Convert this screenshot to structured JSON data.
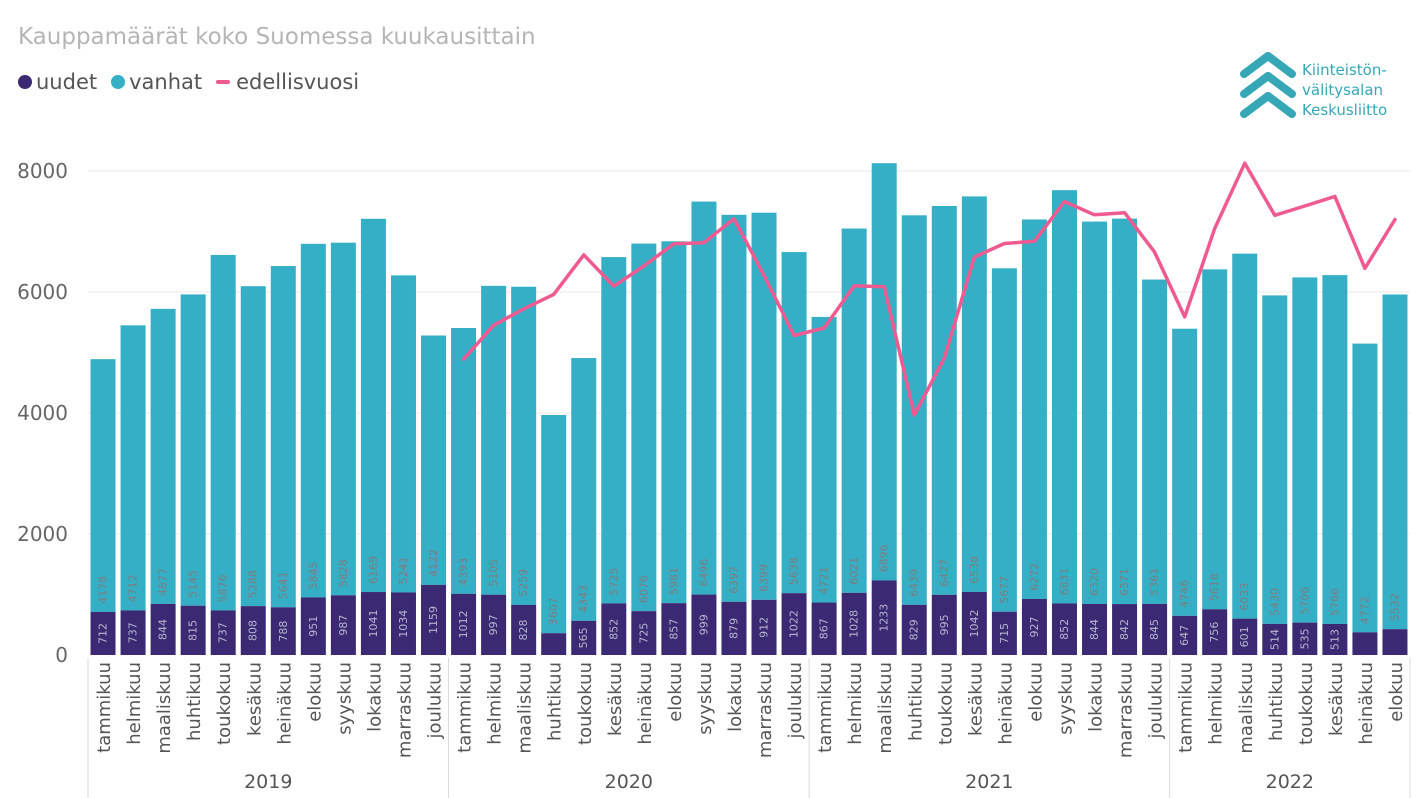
{
  "title": "Kauppamäärät koko Suomessa kuukausittain",
  "legend": {
    "uudet": "uudet",
    "vanhat": "vanhat",
    "edellisvuosi": "edellisvuosi"
  },
  "logo": {
    "line1": "Kiinteistön-",
    "line2": "välitysalan",
    "line3": "Keskusliitto"
  },
  "colors": {
    "uudet": "#3b2a73",
    "vanhat": "#35afc6",
    "edellisvuosi": "#ef5b91",
    "logo": "#35a7b7"
  },
  "chart_data": {
    "type": "bar",
    "stacked": true,
    "title": "Kauppamäärät koko Suomessa kuukausittain",
    "ylim": [
      0,
      8000
    ],
    "yticks": [
      0,
      2000,
      4000,
      6000,
      8000
    ],
    "grid": true,
    "legend_position": "top-left",
    "years": [
      "2019",
      "2020",
      "2021",
      "2022"
    ],
    "year_lengths": [
      12,
      12,
      12,
      8
    ],
    "categories": [
      "tammikuu",
      "helmikuu",
      "maaliskuu",
      "huhtikuu",
      "toukokuu",
      "kesäkuu",
      "heinäkuu",
      "elokuu",
      "syyskuu",
      "lokakuu",
      "marraskuu",
      "joulukuu",
      "tammikuu",
      "helmikuu",
      "maaliskuu",
      "huhtikuu",
      "toukokuu",
      "kesäkuu",
      "heinäkuu",
      "elokuu",
      "syyskuu",
      "lokakuu",
      "marraskuu",
      "joulukuu",
      "tammikuu",
      "helmikuu",
      "maaliskuu",
      "huhtikuu",
      "toukokuu",
      "kesäkuu",
      "heinäkuu",
      "elokuu",
      "syyskuu",
      "lokakuu",
      "marraskuu",
      "joulukuu",
      "tammikuu",
      "helmikuu",
      "maaliskuu",
      "huhtikuu",
      "toukokuu",
      "kesäkuu",
      "heinäkuu",
      "elokuu"
    ],
    "series": [
      {
        "name": "uudet",
        "values": [
          712,
          737,
          844,
          815,
          737,
          808,
          788,
          951,
          987,
          1041,
          1034,
          1159,
          1012,
          997,
          828,
          360,
          565,
          852,
          725,
          857,
          999,
          879,
          912,
          1022,
          867,
          1028,
          1233,
          829,
          995,
          1042,
          715,
          927,
          852,
          844,
          842,
          845,
          647,
          756,
          601,
          514,
          535,
          513,
          375,
          427
        ],
        "labels": [
          "712",
          "737",
          "844",
          "815",
          "737",
          "808",
          "788",
          "951",
          "987",
          "1041",
          "1034",
          "1159",
          "1012",
          "997",
          "828",
          "",
          "565",
          "852",
          "725",
          "857",
          "999",
          "879",
          "912",
          "1022",
          "867",
          "1028",
          "1233",
          "829",
          "995",
          "1042",
          "715",
          "927",
          "852",
          "844",
          "842",
          "845",
          "647",
          "756",
          "601",
          "514",
          "535",
          "513",
          "",
          ""
        ]
      },
      {
        "name": "vanhat",
        "values": [
          4178,
          4712,
          4877,
          5145,
          5876,
          5288,
          5641,
          5845,
          5828,
          6169,
          5241,
          4122,
          4393,
          5105,
          5259,
          3607,
          4343,
          5725,
          6076,
          5981,
          6496,
          6397,
          6399,
          5638,
          4721,
          6021,
          6896,
          6439,
          6427,
          6538,
          5677,
          6272,
          6831,
          6320,
          6371,
          5361,
          4746,
          5618,
          6033,
          5430,
          5706,
          5766,
          4772,
          5532
        ],
        "labels": [
          "4178",
          "4712",
          "4877",
          "5145",
          "5876",
          "5288",
          "5641",
          "5845",
          "5828",
          "6169",
          "5241",
          "4122",
          "4393",
          "5105",
          "5259",
          "3607",
          "4343",
          "5725",
          "6076",
          "5981",
          "6496",
          "6397",
          "6399",
          "5638",
          "4721",
          "6021",
          "6896",
          "6439",
          "6427",
          "6538",
          "5677",
          "6272",
          "6831",
          "6320",
          "6371",
          "5361",
          "4746",
          "5618",
          "6033",
          "5430",
          "5706",
          "5766",
          "4772",
          "5532"
        ]
      },
      {
        "name": "edellisvuosi",
        "type": "line",
        "values": [
          null,
          null,
          null,
          null,
          null,
          null,
          null,
          null,
          null,
          null,
          null,
          null,
          4890,
          5449,
          5721,
          5960,
          6613,
          6096,
          6429,
          6796,
          6815,
          7210,
          6275,
          5281,
          5405,
          6102,
          6087,
          3967,
          4908,
          6577,
          6801,
          6838,
          7495,
          7276,
          7311,
          6660,
          5588,
          7049,
          8129,
          7268,
          7422,
          7580,
          6392,
          7199
        ]
      }
    ]
  }
}
